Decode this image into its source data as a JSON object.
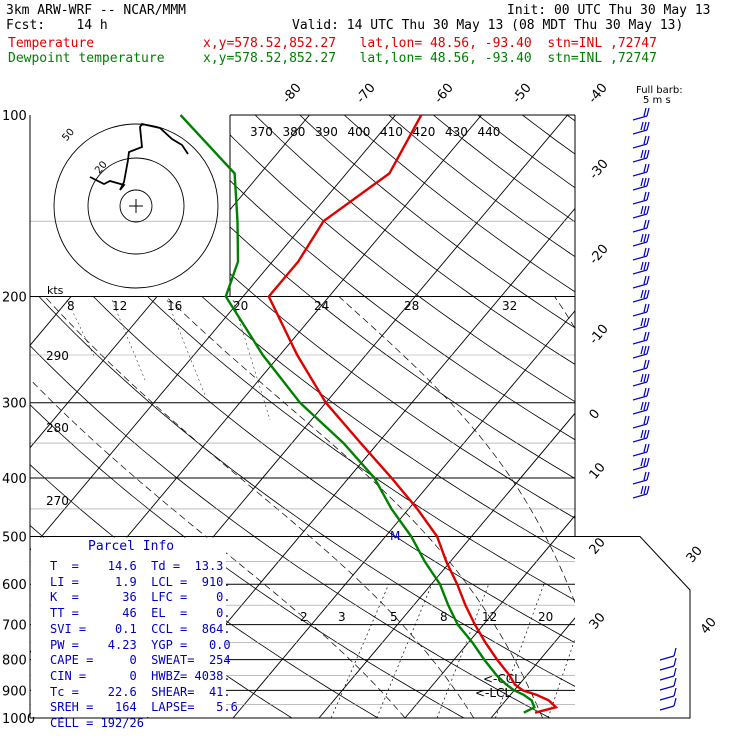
{
  "header": {
    "line1_left": "3km ARW-WRF -- NCAR/MMM",
    "line1_right": "Init: 00 UTC Thu 30 May 13",
    "line2_left": "Fcst:    14 h",
    "line2_right": "Valid: 14 UTC Thu 30 May 13 (08 MDT Thu 30 May 13)",
    "temp_label": "Temperature",
    "temp_info": "x,y=578.52,852.27   lat,lon= 48.56, -93.40  stn=INL ,72747",
    "dew_label": "Dewpoint temperature",
    "dew_info": "x,y=578.52,852.27   lat,lon= 48.56, -93.40  stn=INL ,72747"
  },
  "colors": {
    "temperature": "#e00000",
    "dewpoint": "#008000",
    "parcel": "#0000c0",
    "wind": "#0000c0"
  },
  "axes": {
    "pressure_labels": [
      "100",
      "200",
      "300",
      "400",
      "500",
      "600",
      "700",
      "800",
      "900",
      "1000"
    ],
    "isotherm_labels_top": [
      "-80",
      "-70",
      "-60",
      "-50",
      "-40"
    ],
    "isotherm_labels_right": [
      "-30",
      "-20",
      "-10",
      "0",
      "10",
      "20",
      "30",
      "40"
    ],
    "theta_labels": [
      "370",
      "380",
      "390",
      "400",
      "410",
      "420",
      "430",
      "440"
    ],
    "mixing_ratio_labels": [
      "2",
      "3",
      "5",
      "8",
      "12",
      "20"
    ],
    "left_theta_labels": [
      "290",
      "280",
      "270"
    ],
    "wind_key_title": "Full barb:",
    "wind_key_value": "5 m s",
    "ccl_label": "<-CCL",
    "lcl_label": "<-LCL",
    "m_marker": "M"
  },
  "hodograph": {
    "speed_axis_title": "kts",
    "speed_labels": [
      "8",
      "12",
      "16",
      "20",
      "24",
      "28",
      "32"
    ],
    "ring_label_small": "20",
    "ring_label_large": "50"
  },
  "parcel_info": {
    "title": "Parcel Info",
    "rows": [
      "T  =    14.6  Td =  13.3",
      "LI =     1.9  LCL =  910.",
      "K  =      36  LFC =    0.",
      "TT =      46  EL  =    0.",
      "SVI =    0.1  CCL =  864.",
      "PW =    4.23  YGP =   0.0",
      "CAPE =     0  SWEAT=  254",
      "CIN =      0  HWBZ= 4038.",
      "Tc =    22.6  SHEAR=  41.",
      "SREH =   164  LAPSE=   5.6",
      "CELL = 192/26"
    ]
  },
  "chart_data": {
    "type": "line",
    "title": "",
    "ylabel": "",
    "xlabel": "",
    "y_scale": "log-pressure",
    "ylim": [
      1000,
      100
    ],
    "series": [
      {
        "name": "Temperature",
        "pressure": [
          980,
          960,
          935,
          915,
          900,
          880,
          850,
          800,
          750,
          700,
          650,
          600,
          550,
          500,
          450,
          400,
          350,
          300,
          250,
          200,
          175,
          150,
          125,
          100
        ],
        "temperature": [
          14.6,
          16.5,
          15.0,
          13.0,
          11.0,
          9.5,
          8.0,
          5.0,
          2.0,
          -1.0,
          -4.0,
          -7.0,
          -10.5,
          -14.0,
          -19.0,
          -25.0,
          -32.0,
          -40.0,
          -48.0,
          -57.0,
          -57.0,
          -58.0,
          -55.0,
          -57.0
        ]
      },
      {
        "name": "Dewpoint temperature",
        "pressure": [
          980,
          960,
          935,
          915,
          900,
          880,
          850,
          800,
          750,
          700,
          650,
          600,
          550,
          500,
          450,
          400,
          350,
          300,
          250,
          200,
          175,
          150,
          125,
          100
        ],
        "temperature": [
          13.3,
          14.0,
          13.0,
          11.5,
          10.0,
          8.5,
          6.5,
          3.5,
          0.5,
          -3.0,
          -6.0,
          -9.0,
          -13.0,
          -17.0,
          -22.0,
          -27.0,
          -34.0,
          -43.0,
          -52.0,
          -62.0,
          -64.0,
          -68.0,
          -73.0,
          -85.0
        ]
      }
    ]
  }
}
